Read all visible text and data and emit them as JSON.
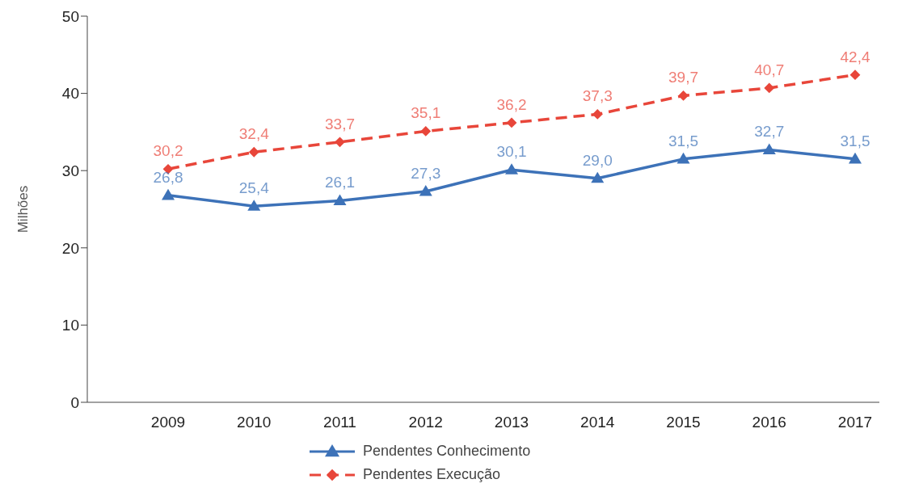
{
  "chart_data": {
    "type": "line",
    "ylabel": "Milhões",
    "categories": [
      "2009",
      "2010",
      "2011",
      "2012",
      "2013",
      "2014",
      "2015",
      "2016",
      "2017"
    ],
    "series": [
      {
        "name": "Pendentes Conhecimento",
        "color": "#3d72b8",
        "marker": "triangle",
        "line_style": "solid",
        "values": [
          26.8,
          25.4,
          26.1,
          27.3,
          30.1,
          29.0,
          31.5,
          32.7,
          31.5
        ],
        "value_labels": [
          "26,8",
          "25,4",
          "26,1",
          "27,3",
          "30,1",
          "29,0",
          "31,5",
          "32,7",
          "31,5"
        ]
      },
      {
        "name": "Pendentes Execução",
        "color": "#e8463a",
        "marker": "diamond",
        "line_style": "dashed",
        "values": [
          30.2,
          32.4,
          33.7,
          35.1,
          36.2,
          37.3,
          39.7,
          40.7,
          42.4
        ],
        "value_labels": [
          "30,2",
          "32,4",
          "33,7",
          "35,1",
          "36,2",
          "37,3",
          "39,7",
          "40,7",
          "42,4"
        ]
      }
    ],
    "ylim": [
      0,
      50
    ],
    "yticks": [
      0,
      10,
      20,
      30,
      40,
      50
    ],
    "grid": false,
    "legend": "bottom",
    "data_labels": true
  }
}
